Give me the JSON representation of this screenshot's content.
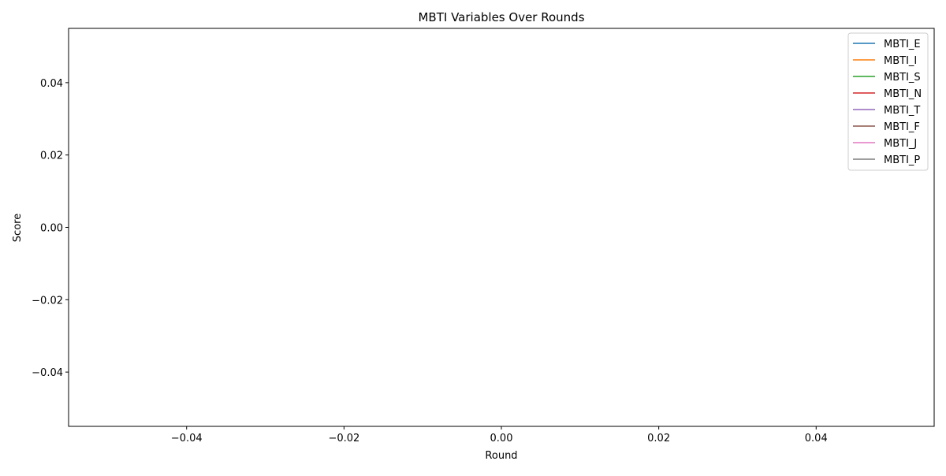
{
  "chart_data": {
    "type": "line",
    "title": "MBTI Variables Over Rounds",
    "xlabel": "Round",
    "ylabel": "Score",
    "xlim": [
      -0.055,
      0.055
    ],
    "ylim": [
      -0.055,
      0.055
    ],
    "xticks": [
      -0.04,
      -0.02,
      0.0,
      0.02,
      0.04
    ],
    "yticks": [
      -0.04,
      -0.02,
      0.0,
      0.02,
      0.04
    ],
    "xtick_labels": [
      "−0.04",
      "−0.02",
      "0.00",
      "0.02",
      "0.04"
    ],
    "ytick_labels": [
      "−0.04",
      "−0.02",
      "0.00",
      "0.02",
      "0.04"
    ],
    "grid": false,
    "legend_position": "top-right",
    "series": [
      {
        "name": "MBTI_E",
        "color": "#1f77b4",
        "x": [],
        "values": []
      },
      {
        "name": "MBTI_I",
        "color": "#ff7f0e",
        "x": [],
        "values": []
      },
      {
        "name": "MBTI_S",
        "color": "#2ca02c",
        "x": [],
        "values": []
      },
      {
        "name": "MBTI_N",
        "color": "#d62728",
        "x": [],
        "values": []
      },
      {
        "name": "MBTI_T",
        "color": "#9467bd",
        "x": [],
        "values": []
      },
      {
        "name": "MBTI_F",
        "color": "#8c564b",
        "x": [],
        "values": []
      },
      {
        "name": "MBTI_J",
        "color": "#e377c2",
        "x": [],
        "values": []
      },
      {
        "name": "MBTI_P",
        "color": "#7f7f7f",
        "x": [],
        "values": []
      }
    ]
  }
}
